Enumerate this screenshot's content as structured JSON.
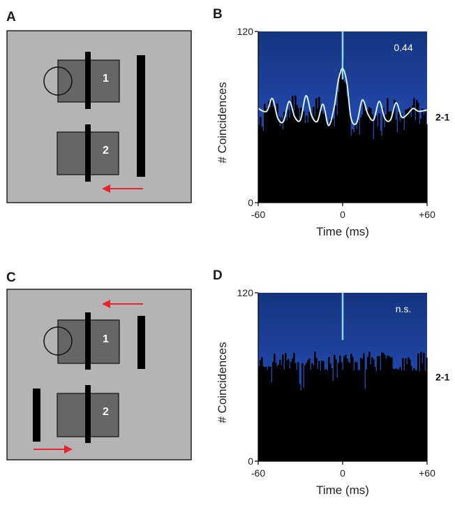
{
  "panels": {
    "A": {
      "label": "A",
      "rf1": "1",
      "rf2": "2"
    },
    "B": {
      "label": "B"
    },
    "C": {
      "label": "C",
      "rf1": "1",
      "rf2": "2"
    },
    "D": {
      "label": "D"
    }
  },
  "colors": {
    "stimulus_bg": "#b4b4b4",
    "rf_fill": "#666666",
    "bar": "#000000",
    "arrow": "#e8232a",
    "plot_bg": "#1f46a6",
    "plot_bg_top": "#16357f",
    "histogram": "#000000",
    "fit_line": "#d9f2f0",
    "center_line": "#8fd8ff"
  },
  "chart_data": [
    {
      "type": "bar",
      "panel": "B",
      "title": "",
      "xlabel": "Time (ms)",
      "ylabel": "# Coincidences",
      "xlim": [
        -60,
        60
      ],
      "ylim": [
        0,
        120
      ],
      "xticks": [
        "-60",
        "0",
        "+60"
      ],
      "yticks": [
        "0",
        "120"
      ],
      "pair_label": "2-1",
      "stat_label": "0.44",
      "histogram": {
        "baseline": 63,
        "noise": 7,
        "oscillation_amplitude": 9,
        "oscillation_period_ms": 17,
        "peak_at_0": 96
      },
      "fit": {
        "x": [
          -60,
          -54,
          -50,
          -46,
          -42,
          -38,
          -34,
          -30,
          -26,
          -22,
          -18,
          -14,
          -10,
          -6,
          -3,
          0,
          3,
          6,
          10,
          14,
          18,
          22,
          26,
          30,
          34,
          38,
          42,
          46,
          50,
          54,
          60
        ],
        "y": [
          66,
          64,
          73,
          59,
          57,
          71,
          60,
          58,
          75,
          61,
          57,
          69,
          54,
          67,
          86,
          94,
          84,
          59,
          56,
          72,
          62,
          58,
          71,
          59,
          58,
          70,
          60,
          62,
          66,
          64,
          65
        ]
      }
    },
    {
      "type": "bar",
      "panel": "D",
      "title": "",
      "xlabel": "Time (ms)",
      "ylabel": "# Coincidences",
      "xlim": [
        -60,
        60
      ],
      "ylim": [
        0,
        120
      ],
      "xticks": [
        "-60",
        "0",
        "+60"
      ],
      "yticks": [
        "0",
        "120"
      ],
      "pair_label": "2-1",
      "stat_label": "n.s.",
      "histogram": {
        "baseline": 71,
        "noise": 7
      }
    }
  ]
}
